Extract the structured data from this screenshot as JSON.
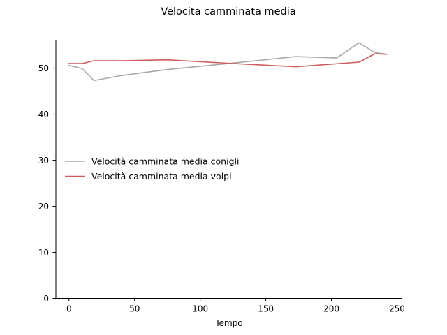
{
  "chart_data": {
    "type": "line",
    "title": "Velocita camminata media",
    "xlabel": "Tempo",
    "ylabel": "",
    "xlim": [
      -10,
      254
    ],
    "ylim": [
      0,
      56
    ],
    "xticks": [
      0,
      50,
      100,
      150,
      200,
      250
    ],
    "yticks": [
      0,
      10,
      20,
      30,
      40,
      50
    ],
    "grid": false,
    "legend_position": "center-left",
    "series": [
      {
        "name": "Velocità camminata media conigli",
        "color": "#a9a9a9",
        "x": [
          0,
          10,
          19,
          40,
          75,
          125,
          173,
          204,
          221,
          233,
          242
        ],
        "y": [
          50.6,
          49.9,
          47.3,
          48.4,
          49.7,
          51.1,
          52.5,
          52.2,
          55.5,
          53.4,
          53.0
        ]
      },
      {
        "name": "Velocità camminata media volpi",
        "color": "#cd5c5c",
        "x": [
          0,
          10,
          19,
          40,
          75,
          125,
          173,
          221,
          233,
          242
        ],
        "y": [
          51.0,
          51.0,
          51.6,
          51.6,
          51.8,
          51.0,
          50.3,
          51.3,
          53.1,
          53.0
        ]
      }
    ]
  }
}
